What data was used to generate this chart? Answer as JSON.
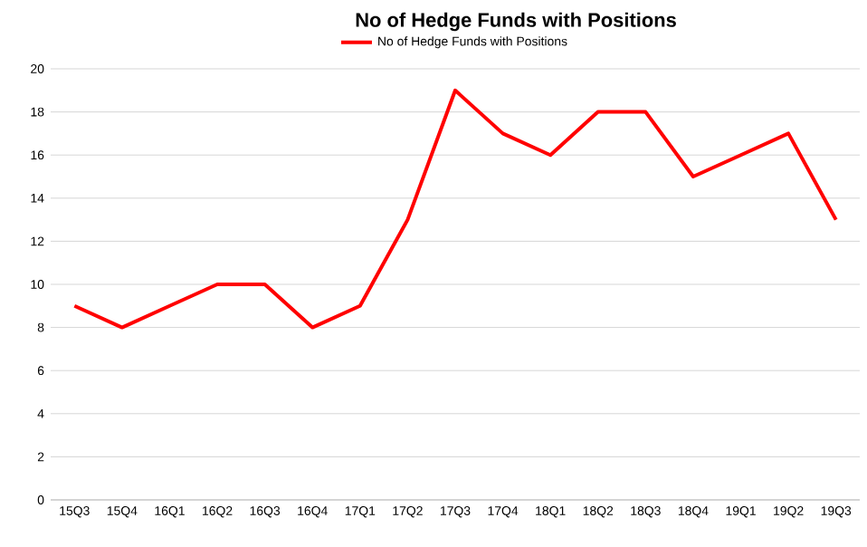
{
  "chart_data": {
    "type": "line",
    "title": "No of Hedge Funds with Positions",
    "categories": [
      "15Q3",
      "15Q4",
      "16Q1",
      "16Q2",
      "16Q3",
      "16Q4",
      "17Q1",
      "17Q2",
      "17Q3",
      "17Q4",
      "18Q1",
      "18Q2",
      "18Q3",
      "18Q4",
      "19Q1",
      "19Q2",
      "19Q3"
    ],
    "series": [
      {
        "name": "No of Hedge Funds with Positions",
        "color": "#ff0000",
        "values": [
          9,
          8,
          9,
          10,
          10,
          8,
          9,
          13,
          19,
          17,
          16,
          18,
          18,
          15,
          16,
          17,
          13
        ]
      }
    ],
    "ylim": [
      0,
      20
    ],
    "yticks": [
      0,
      2,
      4,
      6,
      8,
      10,
      12,
      14,
      16,
      18,
      20
    ],
    "grid": "y",
    "legend": "top",
    "marker": "none",
    "line_style": "solid"
  }
}
